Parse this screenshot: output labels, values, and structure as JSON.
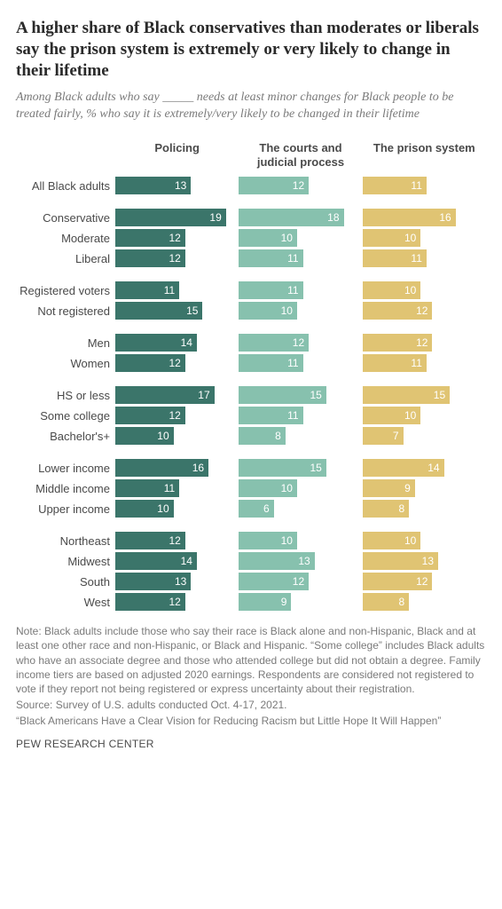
{
  "title": "A higher share of Black conservatives than moderates or liberals say the prison system is extremely or very likely to change in their lifetime",
  "subtitle": "Among Black adults who say _____ needs at least minor changes for Black people to be treated fairly, % who say it is extremely/very likely to be changed in their lifetime",
  "columns": [
    {
      "label": "Policing",
      "color": "#3b756a"
    },
    {
      "label": "The courts and judicial process",
      "color": "#87c1ae"
    },
    {
      "label": "The prison system",
      "color": "#e0c473"
    }
  ],
  "value_text_color_light": "#ffffff",
  "max_value": 20,
  "groups": [
    {
      "rows": [
        {
          "label": "All Black adults",
          "values": [
            13,
            12,
            11
          ]
        }
      ]
    },
    {
      "rows": [
        {
          "label": "Conservative",
          "values": [
            19,
            18,
            16
          ]
        },
        {
          "label": "Moderate",
          "values": [
            12,
            10,
            10
          ]
        },
        {
          "label": "Liberal",
          "values": [
            12,
            11,
            11
          ]
        }
      ]
    },
    {
      "rows": [
        {
          "label": "Registered voters",
          "values": [
            11,
            11,
            10
          ]
        },
        {
          "label": "Not registered",
          "values": [
            15,
            10,
            12
          ]
        }
      ]
    },
    {
      "rows": [
        {
          "label": "Men",
          "values": [
            14,
            12,
            12
          ]
        },
        {
          "label": "Women",
          "values": [
            12,
            11,
            11
          ]
        }
      ]
    },
    {
      "rows": [
        {
          "label": "HS or less",
          "values": [
            17,
            15,
            15
          ]
        },
        {
          "label": "Some college",
          "values": [
            12,
            11,
            10
          ]
        },
        {
          "label": "Bachelor's+",
          "values": [
            10,
            8,
            7
          ]
        }
      ]
    },
    {
      "rows": [
        {
          "label": "Lower income",
          "values": [
            16,
            15,
            14
          ]
        },
        {
          "label": "Middle income",
          "values": [
            11,
            10,
            9
          ]
        },
        {
          "label": "Upper income",
          "values": [
            10,
            6,
            8
          ]
        }
      ]
    },
    {
      "rows": [
        {
          "label": "Northeast",
          "values": [
            12,
            10,
            10
          ]
        },
        {
          "label": "Midwest",
          "values": [
            14,
            13,
            13
          ]
        },
        {
          "label": "South",
          "values": [
            13,
            12,
            12
          ]
        },
        {
          "label": "West",
          "values": [
            12,
            9,
            8
          ]
        }
      ]
    }
  ],
  "note": "Note: Black adults include those who say their race is Black alone and non-Hispanic, Black and at least one other race and non-Hispanic, or Black and Hispanic. “Some college” includes Black adults who have an associate degree and those who attended college but did not obtain a degree. Family income tiers are based on adjusted 2020 earnings. Respondents are considered not registered to vote if they report not being registered or express uncertainty about their registration.",
  "source_line1": "Source: Survey of U.S. adults conducted Oct. 4-17, 2021.",
  "source_line2": "“Black Americans Have a Clear Vision for Reducing Racism but Little Hope It Will Happen”",
  "org": "PEW RESEARCH CENTER"
}
